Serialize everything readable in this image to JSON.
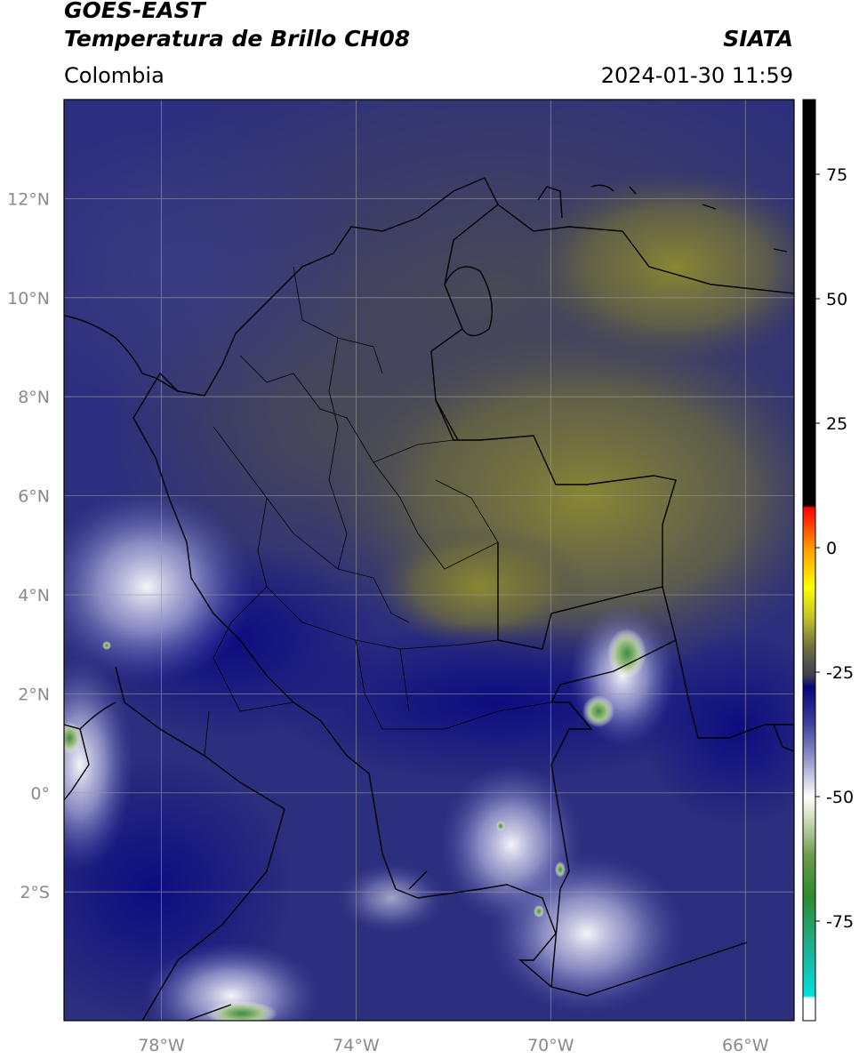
{
  "header": {
    "satellite": "GOES-EAST",
    "product": "Temperatura de Brillo CH08",
    "region": "Colombia",
    "organization": "SIATA",
    "timestamp": "2024-01-30 11:59"
  },
  "map": {
    "type": "satellite-brightness-temperature",
    "lon_range": [
      -80,
      -65
    ],
    "lat_range": [
      -4.6,
      14.0
    ],
    "lat_ticks": [
      {
        "value": 12,
        "label": "12°N"
      },
      {
        "value": 10,
        "label": "10°N"
      },
      {
        "value": 8,
        "label": "8°N"
      },
      {
        "value": 6,
        "label": "6°N"
      },
      {
        "value": 4,
        "label": "4°N"
      },
      {
        "value": 2,
        "label": "2°N"
      },
      {
        "value": 0,
        "label": "0°"
      },
      {
        "value": -2,
        "label": "2°S"
      }
    ],
    "lon_ticks": [
      {
        "value": -78,
        "label": "78°W"
      },
      {
        "value": -74,
        "label": "74°W"
      },
      {
        "value": -70,
        "label": "70°W"
      },
      {
        "value": -66,
        "label": "66°W"
      }
    ],
    "grid": true
  },
  "colorbar": {
    "range": [
      -95,
      90
    ],
    "ticks": [
      {
        "value": 75,
        "label": "75"
      },
      {
        "value": 50,
        "label": "50"
      },
      {
        "value": 25,
        "label": "25"
      },
      {
        "value": 0,
        "label": "0"
      },
      {
        "value": -25,
        "label": "-25"
      },
      {
        "value": -50,
        "label": "-50"
      },
      {
        "value": -75,
        "label": "-75"
      }
    ],
    "stops": [
      {
        "value": -95,
        "color": "#ffffff"
      },
      {
        "value": -90.5,
        "color": "#ffffff"
      },
      {
        "value": -90,
        "color": "#00dede"
      },
      {
        "value": -80,
        "color": "#1faf8f"
      },
      {
        "value": -70,
        "color": "#2f8a2f"
      },
      {
        "value": -62,
        "color": "#6a9a4a"
      },
      {
        "value": -55,
        "color": "#c9d7b4"
      },
      {
        "value": -50,
        "color": "#ffffff"
      },
      {
        "value": -42,
        "color": "#8d8fc7"
      },
      {
        "value": -35,
        "color": "#3a3e9a"
      },
      {
        "value": -28,
        "color": "#05057a"
      },
      {
        "value": -26,
        "color": "#3c3c52"
      },
      {
        "value": -20,
        "color": "#6f6f3e"
      },
      {
        "value": -14,
        "color": "#c4c12a"
      },
      {
        "value": -8,
        "color": "#ffff00"
      },
      {
        "value": 0,
        "color": "#ff9a00"
      },
      {
        "value": 8,
        "color": "#ff0000"
      },
      {
        "value": 8.5,
        "color": "#000000"
      },
      {
        "value": 90,
        "color": "#000000"
      }
    ]
  }
}
